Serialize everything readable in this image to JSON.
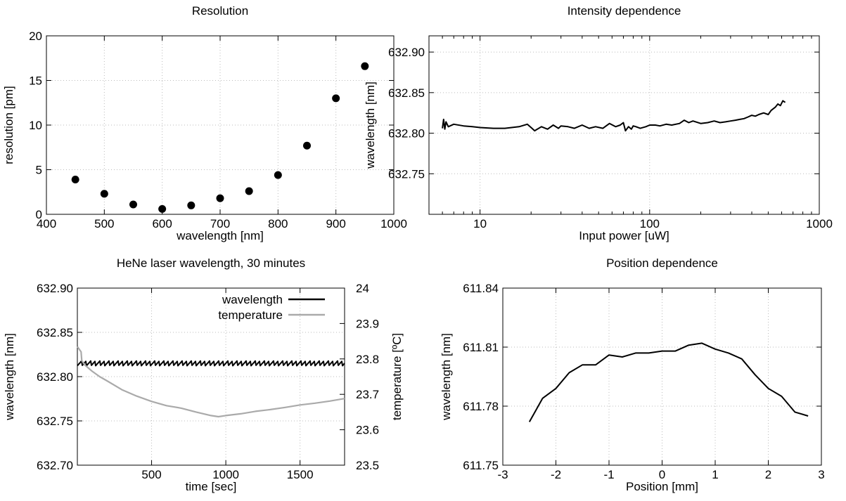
{
  "chart_data": [
    {
      "id": "p1",
      "type": "scatter",
      "title": "Resolution",
      "xlabel": "wavelength [nm]",
      "ylabel": "resolution [pm]",
      "xlim": [
        400,
        1000
      ],
      "ylim": [
        0,
        20
      ],
      "xticks": [
        400,
        500,
        600,
        700,
        800,
        900,
        1000
      ],
      "xtick_labels": [
        "400",
        "500",
        "600",
        "700",
        "800",
        "900",
        "1000"
      ],
      "yticks": [
        0,
        5,
        10,
        15,
        20
      ],
      "ytick_labels": [
        "0",
        "5",
        "10",
        "15",
        "20"
      ],
      "grid": true,
      "series": [
        {
          "color": "#000000",
          "x": [
            450,
            500,
            550,
            600,
            650,
            700,
            750,
            800,
            850,
            900,
            950
          ],
          "y": [
            3.9,
            2.3,
            1.1,
            0.6,
            1.0,
            1.8,
            2.6,
            4.4,
            7.7,
            13.0,
            16.6
          ]
        }
      ]
    },
    {
      "id": "p2",
      "type": "line",
      "title": "Intensity dependence",
      "xlabel": "Input power [uW]",
      "ylabel": "wavelength [nm]",
      "xscale": "log",
      "xlim": [
        5,
        1000
      ],
      "ylim": [
        632.7,
        632.92
      ],
      "xticks": [
        10,
        100,
        1000
      ],
      "xtick_labels": [
        "10",
        "100",
        "1000"
      ],
      "yticks": [
        632.75,
        632.8,
        632.85,
        632.9
      ],
      "ytick_labels": [
        "632.75",
        "632.80",
        "632.85",
        "632.90"
      ],
      "grid": true,
      "series": [
        {
          "color": "#000000",
          "x": [
            6.0,
            6.1,
            6.2,
            6.3,
            6.5,
            7,
            8,
            9,
            10,
            12,
            14,
            17,
            19,
            20,
            21,
            23,
            25,
            27,
            29,
            30,
            33,
            36,
            40,
            44,
            48,
            53,
            58,
            63,
            67,
            70,
            72,
            75,
            78,
            80,
            83,
            88,
            95,
            100,
            108,
            115,
            125,
            135,
            150,
            160,
            170,
            180,
            200,
            220,
            240,
            260,
            280,
            300,
            320,
            340,
            360,
            380,
            400,
            420,
            440,
            470,
            500,
            520,
            550,
            570,
            590,
            610,
            630
          ],
          "y": [
            632.806,
            632.817,
            632.805,
            632.814,
            632.808,
            632.811,
            632.809,
            632.808,
            632.807,
            632.806,
            632.806,
            632.808,
            632.811,
            632.807,
            632.803,
            632.808,
            632.805,
            632.81,
            632.806,
            632.809,
            632.808,
            632.806,
            632.81,
            632.806,
            632.808,
            632.806,
            632.812,
            632.808,
            632.81,
            632.813,
            632.803,
            632.808,
            632.805,
            632.809,
            632.808,
            632.806,
            632.808,
            632.81,
            632.81,
            632.809,
            632.811,
            632.81,
            632.812,
            632.816,
            632.813,
            632.815,
            632.812,
            632.813,
            632.815,
            632.813,
            632.814,
            632.815,
            632.816,
            632.817,
            632.818,
            632.82,
            632.822,
            632.821,
            632.823,
            632.825,
            632.823,
            632.828,
            632.832,
            632.836,
            632.834,
            632.84,
            632.838
          ]
        }
      ]
    },
    {
      "id": "p3",
      "type": "line",
      "title": "HeNe laser wavelength, 30 minutes",
      "xlabel": "time [sec]",
      "ylabel": "wavelength [nm]",
      "y2label": "temperature [ºC]",
      "xlim": [
        0,
        1800
      ],
      "ylim": [
        632.7,
        632.9
      ],
      "y2lim": [
        23.5,
        24.0
      ],
      "xticks": [
        500,
        1000,
        1500
      ],
      "xtick_labels": [
        "500",
        "1000",
        "1500"
      ],
      "yticks": [
        632.7,
        632.75,
        632.8,
        632.85,
        632.9
      ],
      "ytick_labels": [
        "632.70",
        "632.75",
        "632.80",
        "632.85",
        "632.90"
      ],
      "y2ticks": [
        23.5,
        23.6,
        23.7,
        23.8,
        23.9,
        24.0
      ],
      "y2tick_labels": [
        "23.5",
        "23.6",
        "23.7",
        "23.8",
        "23.9",
        "24"
      ],
      "grid": true,
      "legend_position": "top-right",
      "series": [
        {
          "name": "wavelength",
          "color": "#000000",
          "axis": "left",
          "x": [
            0,
            1800
          ],
          "y": [
            632.815,
            632.815
          ]
        },
        {
          "name": "temperature",
          "color": "#aaaaaa",
          "axis": "right",
          "x": [
            0,
            25,
            30,
            50,
            100,
            150,
            200,
            300,
            400,
            500,
            600,
            700,
            800,
            900,
            950,
            1000,
            1100,
            1200,
            1300,
            1400,
            1500,
            1600,
            1700,
            1800
          ],
          "y": [
            23.835,
            23.82,
            23.795,
            23.783,
            23.765,
            23.75,
            23.738,
            23.713,
            23.695,
            23.68,
            23.668,
            23.661,
            23.65,
            23.64,
            23.637,
            23.64,
            23.645,
            23.652,
            23.657,
            23.663,
            23.67,
            23.675,
            23.681,
            23.688
          ]
        }
      ]
    },
    {
      "id": "p4",
      "type": "line",
      "title": "Position dependence",
      "xlabel": "Position [mm]",
      "ylabel": "wavelength [nm]",
      "xlim": [
        -3,
        3
      ],
      "ylim": [
        611.75,
        611.84
      ],
      "xticks": [
        -3,
        -2,
        -1,
        0,
        1,
        2,
        3
      ],
      "xtick_labels": [
        "-3",
        "-2",
        "-1",
        "0",
        "1",
        "2",
        "3"
      ],
      "yticks": [
        611.75,
        611.78,
        611.81,
        611.84
      ],
      "ytick_labels": [
        "611.75",
        "611.78",
        "611.81",
        "611.84"
      ],
      "grid": true,
      "series": [
        {
          "color": "#000000",
          "x": [
            -2.5,
            -2.25,
            -2.0,
            -1.75,
            -1.5,
            -1.25,
            -1.0,
            -0.75,
            -0.5,
            -0.25,
            0.0,
            0.25,
            0.5,
            0.75,
            1.0,
            1.25,
            1.5,
            1.75,
            2.0,
            2.25,
            2.5,
            2.75
          ],
          "y": [
            611.772,
            611.784,
            611.789,
            611.797,
            611.801,
            611.801,
            611.806,
            611.805,
            611.807,
            611.807,
            611.808,
            611.808,
            611.811,
            611.812,
            611.809,
            611.807,
            611.804,
            611.796,
            611.789,
            611.785,
            611.777,
            611.775
          ]
        }
      ]
    }
  ]
}
